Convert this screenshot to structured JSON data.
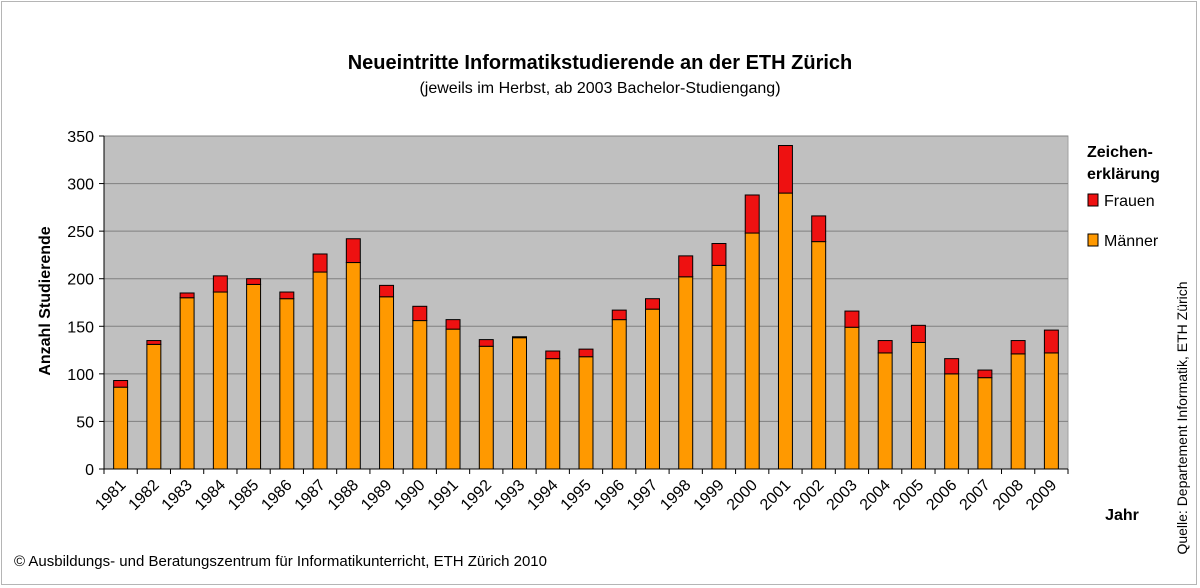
{
  "chart_data": {
    "type": "bar",
    "stacked": true,
    "title": "Neueintritte Informatikstudierende an der ETH Zürich",
    "subtitle": "(jeweils im Herbst, ab 2003 Bachelor-Studiengang)",
    "xlabel": "Jahr",
    "ylabel": "Anzahl Studierende",
    "ylim": [
      0,
      350
    ],
    "yticks": [
      0,
      50,
      100,
      150,
      200,
      250,
      300,
      350
    ],
    "grid": true,
    "legend_title": "Zeichen-\nerklärung",
    "legend_title_lines": [
      "Zeichen-",
      "erklärung"
    ],
    "legend_placement": "right",
    "categories": [
      "1981",
      "1982",
      "1983",
      "1984",
      "1985",
      "1986",
      "1987",
      "1988",
      "1989",
      "1990",
      "1991",
      "1992",
      "1993",
      "1994",
      "1995",
      "1996",
      "1997",
      "1998",
      "1999",
      "2000",
      "2001",
      "2002",
      "2003",
      "2004",
      "2005",
      "2006",
      "2007",
      "2008",
      "2009"
    ],
    "series": [
      {
        "name": "Männer",
        "color": "#ff9900",
        "values": [
          86,
          131,
          180,
          186,
          194,
          179,
          207,
          217,
          181,
          156,
          147,
          129,
          138,
          116,
          118,
          157,
          168,
          202,
          214,
          248,
          290,
          239,
          149,
          122,
          133,
          100,
          96,
          121,
          122
        ]
      },
      {
        "name": "Frauen",
        "color": "#ee1111",
        "values": [
          7,
          4,
          5,
          17,
          6,
          7,
          19,
          25,
          12,
          15,
          10,
          7,
          1,
          8,
          8,
          10,
          11,
          22,
          23,
          40,
          50,
          27,
          17,
          13,
          18,
          16,
          8,
          14,
          24
        ]
      }
    ],
    "colors": {
      "plot_background": "#c0c0c0",
      "gridline": "#808080",
      "bar_outline": "#000000"
    }
  },
  "footnote": "© Ausbildungs- und Beratungszentrum für Informatikunterricht, ETH Zürich 2010",
  "source": "Quelle: Departement Informatik, ETH Zürich"
}
